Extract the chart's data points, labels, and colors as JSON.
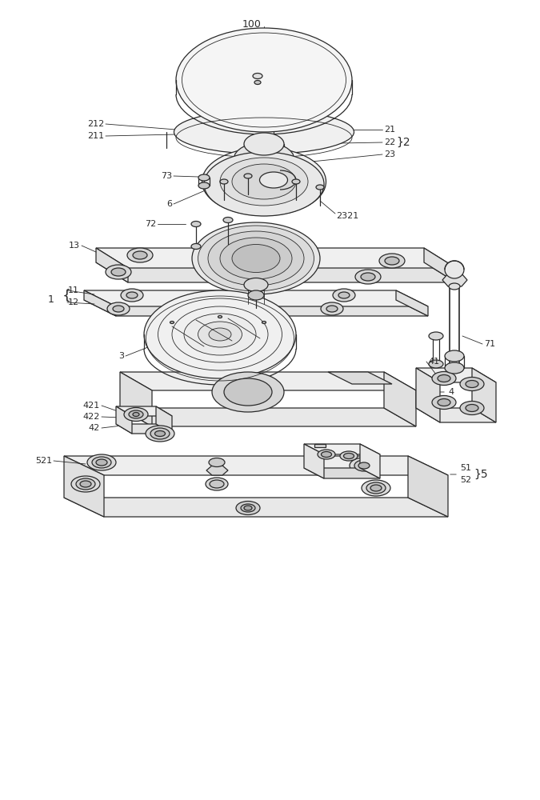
{
  "bg": "#ffffff",
  "lc": "#2a2a2a",
  "lw": 0.9,
  "tlw": 0.6,
  "glw": 0.5,
  "label_fs": 8,
  "title_fs": 9
}
